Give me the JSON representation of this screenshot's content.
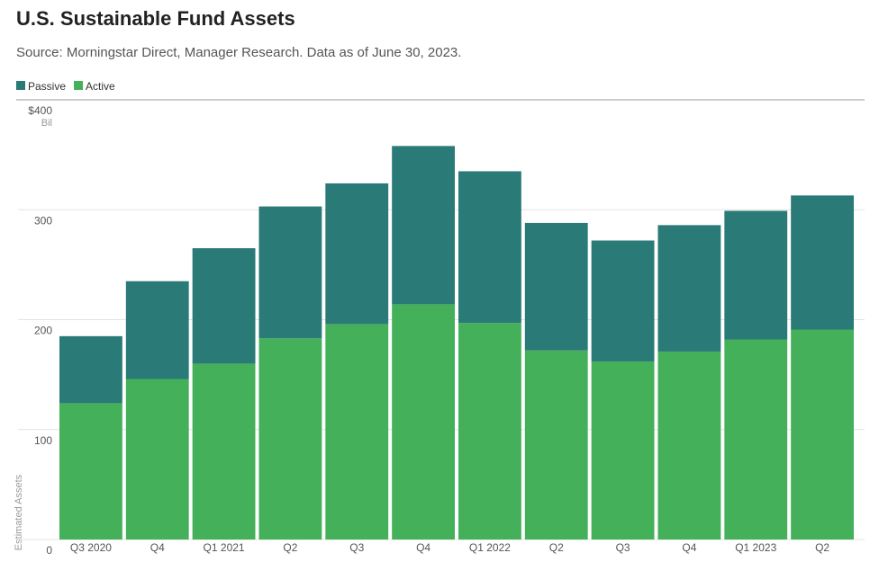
{
  "chart_data": {
    "type": "stacked_bar",
    "title": "U.S. Sustainable Fund Assets",
    "subtitle": "Source: Morningstar Direct, Manager Research. Data as of June 30, 2023.",
    "y_label": "Estimated Assets",
    "y_unit": "Bil",
    "categories": [
      "Q3 2020",
      "Q4",
      "Q1 2021",
      "Q2",
      "Q3",
      "Q4",
      "Q1 2022",
      "Q2",
      "Q3",
      "Q4",
      "Q1 2023",
      "Q2"
    ],
    "series": [
      {
        "name": "Passive",
        "color": "#2a7a78",
        "values": [
          61,
          89,
          105,
          120,
          128,
          144,
          138,
          116,
          110,
          115,
          117,
          122
        ]
      },
      {
        "name": "Active",
        "color": "#44b05a",
        "values": [
          124,
          146,
          160,
          183,
          196,
          214,
          197,
          172,
          162,
          171,
          182,
          191
        ]
      }
    ],
    "ylim": [
      0,
      400
    ],
    "yticks": [
      0,
      100,
      200,
      300,
      {
        "value": 400,
        "label": "$400"
      }
    ],
    "grid": true,
    "legend": "top-left"
  }
}
